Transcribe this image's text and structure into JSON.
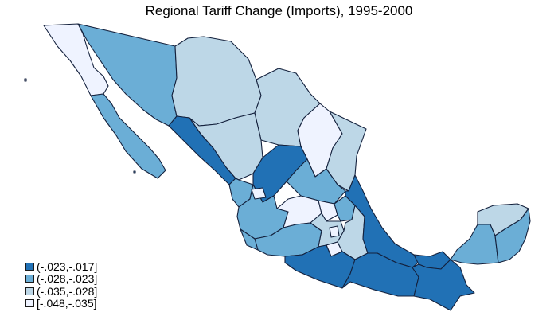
{
  "title": "Regional Tariff Change (Imports), 1995-2000",
  "colors": {
    "class1": "#2171b5",
    "class2": "#6baed6",
    "class3": "#bdd7e7",
    "class4": "#eff3ff",
    "border": "#14213d"
  },
  "legend": [
    {
      "label": "(-.023,-.017]",
      "class": "class1"
    },
    {
      "label": "(-.028,-.023]",
      "class": "class2"
    },
    {
      "label": "(-.035,-.028]",
      "class": "class3"
    },
    {
      "label": "[-.048,-.035]",
      "class": "class4"
    }
  ]
}
